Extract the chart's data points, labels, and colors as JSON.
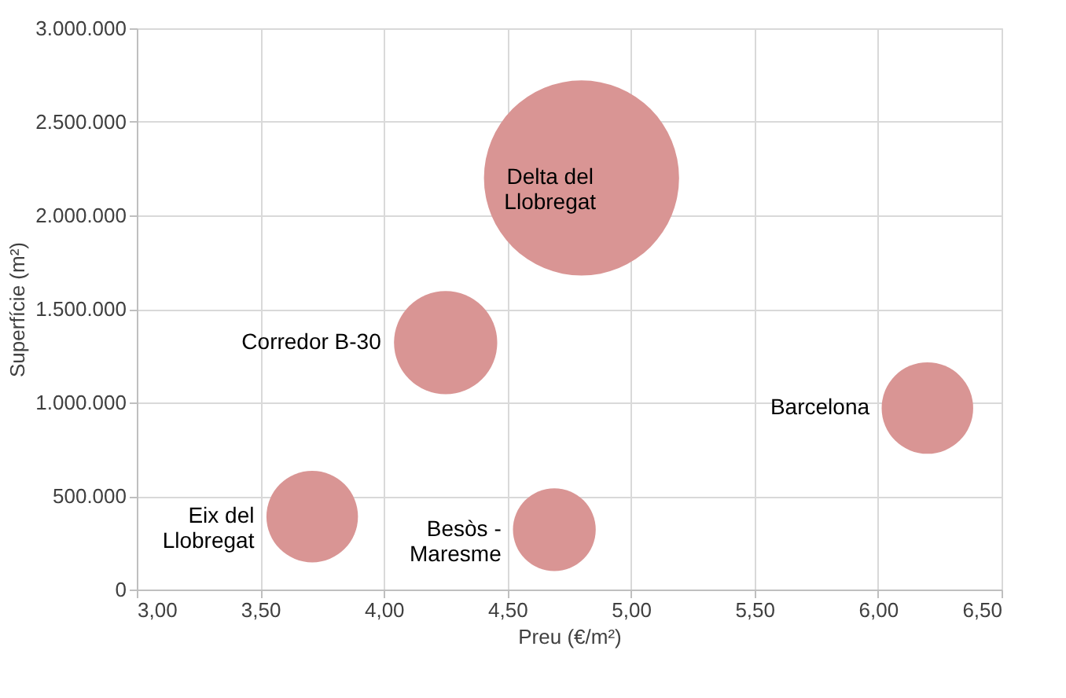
{
  "chart_data": {
    "type": "bubble",
    "xlabel": "Preu (€/m²)",
    "ylabel": "Superfície (m²)",
    "x": [
      3.71,
      4.25,
      4.8,
      4.69,
      6.2
    ],
    "series": [
      {
        "color": "#d99594",
        "values": [
          390000,
          1320000,
          2200000,
          320000,
          970000
        ],
        "sizes": [
          0.22,
          0.28,
          1,
          0.18,
          0.22
        ]
      }
    ],
    "xlim": [
      3.0,
      6.5
    ],
    "xticks": [
      {
        "value": 3.0,
        "label": "3,00"
      },
      {
        "value": 3.5,
        "label": "3,50"
      },
      {
        "value": 4.0,
        "label": "4,00"
      },
      {
        "value": 4.5,
        "label": "4,50"
      },
      {
        "value": 5.0,
        "label": "5,00"
      },
      {
        "value": 5.5,
        "label": "5,50"
      },
      {
        "value": 6.0,
        "label": "6,00"
      },
      {
        "value": 6.5,
        "label": "6,50"
      }
    ],
    "ylim": [
      0,
      3000000
    ],
    "yticks": [
      0,
      {
        "value": 500000,
        "label": "500.000"
      },
      {
        "value": 1000000,
        "label": "1.000.000"
      },
      {
        "value": 1500000,
        "label": "1.500.000"
      },
      {
        "value": 2000000,
        "label": "2.000.000"
      },
      {
        "value": 2500000,
        "label": "2.500.000"
      },
      {
        "value": 3000000,
        "label": "3.000.000"
      }
    ],
    "annotations": [
      {
        "text": "Eix del\nLlobregat",
        "x": 3.71,
        "y": 390000
      },
      {
        "text": "Corredor B-30",
        "x": 4.25,
        "y": 1320000
      },
      {
        "text": "Delta del\nLlobregat",
        "x": 4.8,
        "y": 2200000
      },
      {
        "text": "Besòs -\nMaresme",
        "x": 4.69,
        "y": 320000
      },
      {
        "text": "Barcelona",
        "x": 6.2,
        "y": 970000
      }
    ],
    "grid": true
  }
}
